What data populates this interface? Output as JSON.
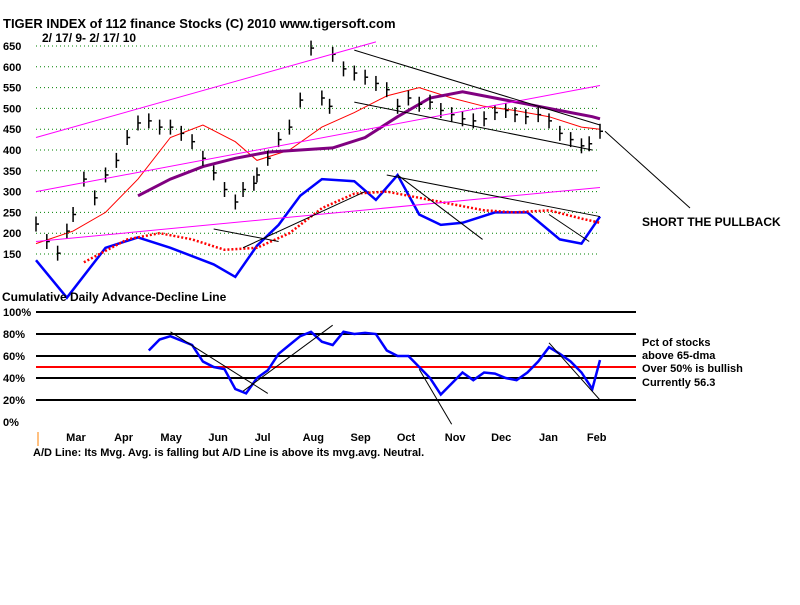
{
  "chart_data": [
    {
      "type": "line",
      "title": "TIGER INDEX of  112 finance Stocks  (C) 2010  www.tigersoft.com",
      "subtitle": "2/ 17/ 9- 2/ 17/ 10",
      "xlabel": "",
      "ylabel": "",
      "ylim": [
        150,
        650
      ],
      "yticks": [
        650,
        600,
        550,
        500,
        450,
        400,
        350,
        300,
        250,
        200,
        150
      ],
      "ytick_labels": [
        "650",
        "600",
        "550",
        "500",
        "450",
        "400",
        "350",
        "300",
        "250",
        "200",
        "150"
      ],
      "grid": true,
      "series": [
        {
          "name": "",
          "color": "#000000",
          "style": "daily price bars",
          "x": [
            "2009-02-17",
            "2009-02-24",
            "2009-03-03",
            "2009-03-09",
            "2009-03-13",
            "2009-03-20",
            "2009-03-27",
            "2009-04-03",
            "2009-04-10",
            "2009-04-17",
            "2009-04-24",
            "2009-05-01",
            "2009-05-08",
            "2009-05-15",
            "2009-05-22",
            "2009-05-29",
            "2009-06-05",
            "2009-06-12",
            "2009-06-19",
            "2009-06-26",
            "2009-07-01",
            "2009-07-08",
            "2009-07-10",
            "2009-07-17",
            "2009-07-24",
            "2009-07-31",
            "2009-08-07",
            "2009-08-14",
            "2009-08-21",
            "2009-08-26",
            "2009-08-28",
            "2009-09-04",
            "2009-09-11",
            "2009-09-18",
            "2009-09-25",
            "2009-10-02",
            "2009-10-09",
            "2009-10-16",
            "2009-10-23",
            "2009-10-30",
            "2009-11-06",
            "2009-11-13",
            "2009-11-20",
            "2009-11-27",
            "2009-12-04",
            "2009-12-11",
            "2009-12-18",
            "2009-12-24",
            "2009-12-31",
            "2010-01-08",
            "2010-01-15",
            "2010-01-22",
            "2010-01-29",
            "2010-02-05",
            "2010-02-10",
            "2010-02-17"
          ],
          "y": [
            222,
            180,
            152,
            205,
            245,
            330,
            285,
            340,
            375,
            430,
            465,
            470,
            455,
            455,
            440,
            420,
            380,
            345,
            305,
            275,
            305,
            320,
            340,
            380,
            425,
            455,
            520,
            645,
            525,
            505,
            630,
            595,
            585,
            575,
            560,
            545,
            505,
            525,
            510,
            515,
            495,
            485,
            475,
            470,
            475,
            490,
            495,
            485,
            480,
            485,
            470,
            440,
            425,
            410,
            415,
            445
          ]
        },
        {
          "name": "",
          "color": "#ff0000",
          "style": "moving average of price",
          "x": [
            "2009-02-17",
            "2009-03-13",
            "2009-04-03",
            "2009-04-24",
            "2009-05-15",
            "2009-06-05",
            "2009-06-26",
            "2009-07-10",
            "2009-07-31",
            "2009-08-21",
            "2009-09-11",
            "2009-10-02",
            "2009-10-23",
            "2009-11-13",
            "2009-12-04",
            "2009-12-24",
            "2010-01-15",
            "2010-02-05",
            "2010-02-17"
          ],
          "y": [
            175,
            205,
            250,
            330,
            430,
            460,
            420,
            375,
            400,
            455,
            490,
            530,
            550,
            525,
            505,
            495,
            480,
            455,
            450
          ]
        },
        {
          "name": "",
          "color": "#800080",
          "style": "longer moving average of price",
          "x": [
            "2009-04-24",
            "2009-05-15",
            "2009-06-05",
            "2009-06-26",
            "2009-07-17",
            "2009-08-07",
            "2009-08-28",
            "2009-09-18",
            "2009-10-09",
            "2009-10-30",
            "2009-11-20",
            "2009-12-11",
            "2010-01-01",
            "2010-01-22",
            "2010-02-12",
            "2010-02-17"
          ],
          "y": [
            290,
            330,
            360,
            380,
            395,
            400,
            405,
            430,
            480,
            525,
            540,
            525,
            510,
            495,
            480,
            475
          ]
        },
        {
          "name": "",
          "color": "#0000ff",
          "style": "Cumulative Daily Advance-Decline Line (own scale)",
          "x": [
            "2009-02-17",
            "2009-03-09",
            "2009-04-03",
            "2009-04-24",
            "2009-05-15",
            "2009-06-12",
            "2009-06-26",
            "2009-07-10",
            "2009-07-24",
            "2009-08-07",
            "2009-08-21",
            "2009-09-11",
            "2009-09-25",
            "2009-10-09",
            "2009-10-23",
            "2009-11-06",
            "2009-11-20",
            "2009-12-11",
            "2010-01-01",
            "2010-01-22",
            "2010-02-05",
            "2010-02-17"
          ],
          "y": [
            135,
            45,
            165,
            190,
            165,
            125,
            95,
            170,
            220,
            290,
            330,
            325,
            280,
            340,
            245,
            220,
            225,
            250,
            250,
            185,
            175,
            240
          ]
        },
        {
          "name": "",
          "color": "#ff0000",
          "style": "dotted moving average of A/D Line",
          "x": [
            "2009-03-20",
            "2009-04-17",
            "2009-05-08",
            "2009-05-29",
            "2009-06-19",
            "2009-07-10",
            "2009-07-31",
            "2009-08-21",
            "2009-09-11",
            "2009-10-02",
            "2009-10-23",
            "2009-11-13",
            "2009-12-04",
            "2009-12-24",
            "2010-01-15",
            "2010-02-05",
            "2010-02-17"
          ],
          "y": [
            130,
            185,
            200,
            185,
            160,
            165,
            200,
            260,
            295,
            300,
            285,
            270,
            255,
            250,
            255,
            235,
            225
          ]
        }
      ],
      "trendlines": [
        {
          "color": "#ff00ff",
          "from": [
            "2009-02-17",
            430
          ],
          "to": [
            "2009-09-25",
            660
          ]
        },
        {
          "color": "#ff00ff",
          "from": [
            "2009-02-17",
            300
          ],
          "to": [
            "2010-02-17",
            555
          ]
        },
        {
          "color": "#ff00ff",
          "from": [
            "2009-02-17",
            180
          ],
          "to": [
            "2010-02-17",
            310
          ]
        },
        {
          "color": "#000000",
          "from": [
            "2009-09-11",
            640
          ],
          "to": [
            "2010-02-17",
            460
          ]
        },
        {
          "color": "#000000",
          "from": [
            "2009-09-11",
            515
          ],
          "to": [
            "2010-02-12",
            400
          ]
        },
        {
          "color": "#000000",
          "from": [
            "2009-10-02",
            340
          ],
          "to": [
            "2010-02-17",
            240
          ]
        },
        {
          "color": "#000000",
          "from": [
            "2009-06-12",
            210
          ],
          "to": [
            "2009-07-24",
            180
          ]
        },
        {
          "color": "#000000",
          "from": [
            "2009-07-01",
            165
          ],
          "to": [
            "2009-09-18",
            300
          ]
        },
        {
          "color": "#000000",
          "from": [
            "2009-10-09",
            340
          ],
          "to": [
            "2009-12-03",
            185
          ]
        },
        {
          "color": "#000000",
          "from": [
            "2010-01-15",
            245
          ],
          "to": [
            "2010-02-10",
            180
          ]
        }
      ],
      "annotation": "SHORT THE PULLBACK",
      "ad_label": "Cumulative Daily Advance-Decline Line"
    },
    {
      "type": "line",
      "title": "",
      "xlabel": "",
      "ylabel": "",
      "ylim": [
        0,
        100
      ],
      "yticks": [
        100,
        80,
        60,
        40,
        20,
        0
      ],
      "ytick_labels": [
        "100%",
        "80%",
        "60%",
        "40%",
        "20%",
        "0%"
      ],
      "grid": true,
      "reference_line": {
        "value": 50,
        "color": "#ff0000"
      },
      "series": [
        {
          "name": "",
          "color": "#0000ff",
          "x": [
            "2009-05-01",
            "2009-05-08",
            "2009-05-15",
            "2009-05-29",
            "2009-06-05",
            "2009-06-12",
            "2009-06-19",
            "2009-06-26",
            "2009-07-03",
            "2009-07-10",
            "2009-07-17",
            "2009-07-24",
            "2009-07-31",
            "2009-08-07",
            "2009-08-14",
            "2009-08-21",
            "2009-08-28",
            "2009-09-04",
            "2009-09-11",
            "2009-09-18",
            "2009-09-25",
            "2009-10-02",
            "2009-10-09",
            "2009-10-16",
            "2009-10-23",
            "2009-10-30",
            "2009-11-06",
            "2009-11-13",
            "2009-11-20",
            "2009-11-27",
            "2009-12-04",
            "2009-12-11",
            "2009-12-18",
            "2009-12-25",
            "2010-01-01",
            "2010-01-08",
            "2010-01-15",
            "2010-01-22",
            "2010-01-29",
            "2010-02-05",
            "2010-02-12",
            "2010-02-17"
          ],
          "y": [
            65,
            75,
            78,
            70,
            55,
            50,
            48,
            30,
            26,
            40,
            47,
            62,
            70,
            78,
            82,
            73,
            70,
            82,
            80,
            81,
            80,
            65,
            60,
            60,
            50,
            40,
            25,
            35,
            45,
            38,
            45,
            44,
            40,
            38,
            45,
            55,
            68,
            62,
            55,
            45,
            30,
            56.3
          ]
        }
      ],
      "trendlines": [
        {
          "color": "#000000",
          "from": [
            "2009-05-15",
            82
          ],
          "to": [
            "2009-07-17",
            26
          ]
        },
        {
          "color": "#000000",
          "from": [
            "2009-07-01",
            28
          ],
          "to": [
            "2009-08-28",
            88
          ]
        },
        {
          "color": "#000000",
          "from": [
            "2009-10-23",
            48
          ],
          "to": [
            "2009-11-13",
            -2
          ]
        },
        {
          "color": "#000000",
          "from": [
            "2010-01-15",
            72
          ],
          "to": [
            "2010-02-17",
            20
          ]
        }
      ],
      "notes": [
        "Pct of stocks",
        "above 65-dma",
        "Over 50% is bullish",
        "Currently  56.3"
      ],
      "xticks": [
        "Mar",
        "Apr",
        "May",
        "Jun",
        "Jul",
        "Aug",
        "Sep",
        "Oct",
        "Nov",
        "Dec",
        "Jan",
        "Feb"
      ],
      "footer": "A/D Line: Its Mvg. Avg. is falling but A/D Line is above its mvg.avg. Neutral."
    }
  ]
}
